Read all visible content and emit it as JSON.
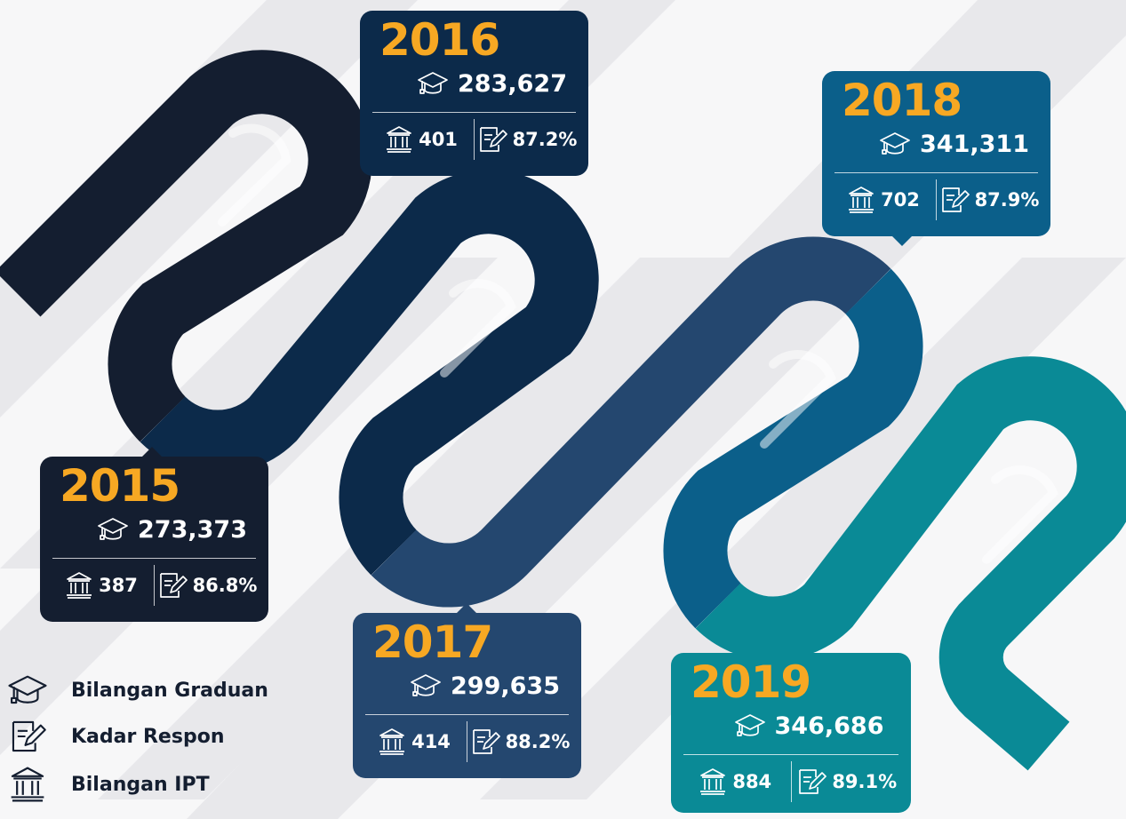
{
  "cards": [
    {
      "year": "2015",
      "graduates": "273,373",
      "institutions": "387",
      "response_rate": "86.8%"
    },
    {
      "year": "2016",
      "graduates": "283,627",
      "institutions": "401",
      "response_rate": "87.2%"
    },
    {
      "year": "2017",
      "graduates": "299,635",
      "institutions": "414",
      "response_rate": "88.2%"
    },
    {
      "year": "2018",
      "graduates": "341,311",
      "institutions": "702",
      "response_rate": "87.9%"
    },
    {
      "year": "2019",
      "graduates": "346,686",
      "institutions": "884",
      "response_rate": "89.1%"
    }
  ],
  "legend": [
    {
      "label": "Bilangan Graduan"
    },
    {
      "label": "Kadar Respon"
    },
    {
      "label": "Bilangan IPT"
    }
  ]
}
